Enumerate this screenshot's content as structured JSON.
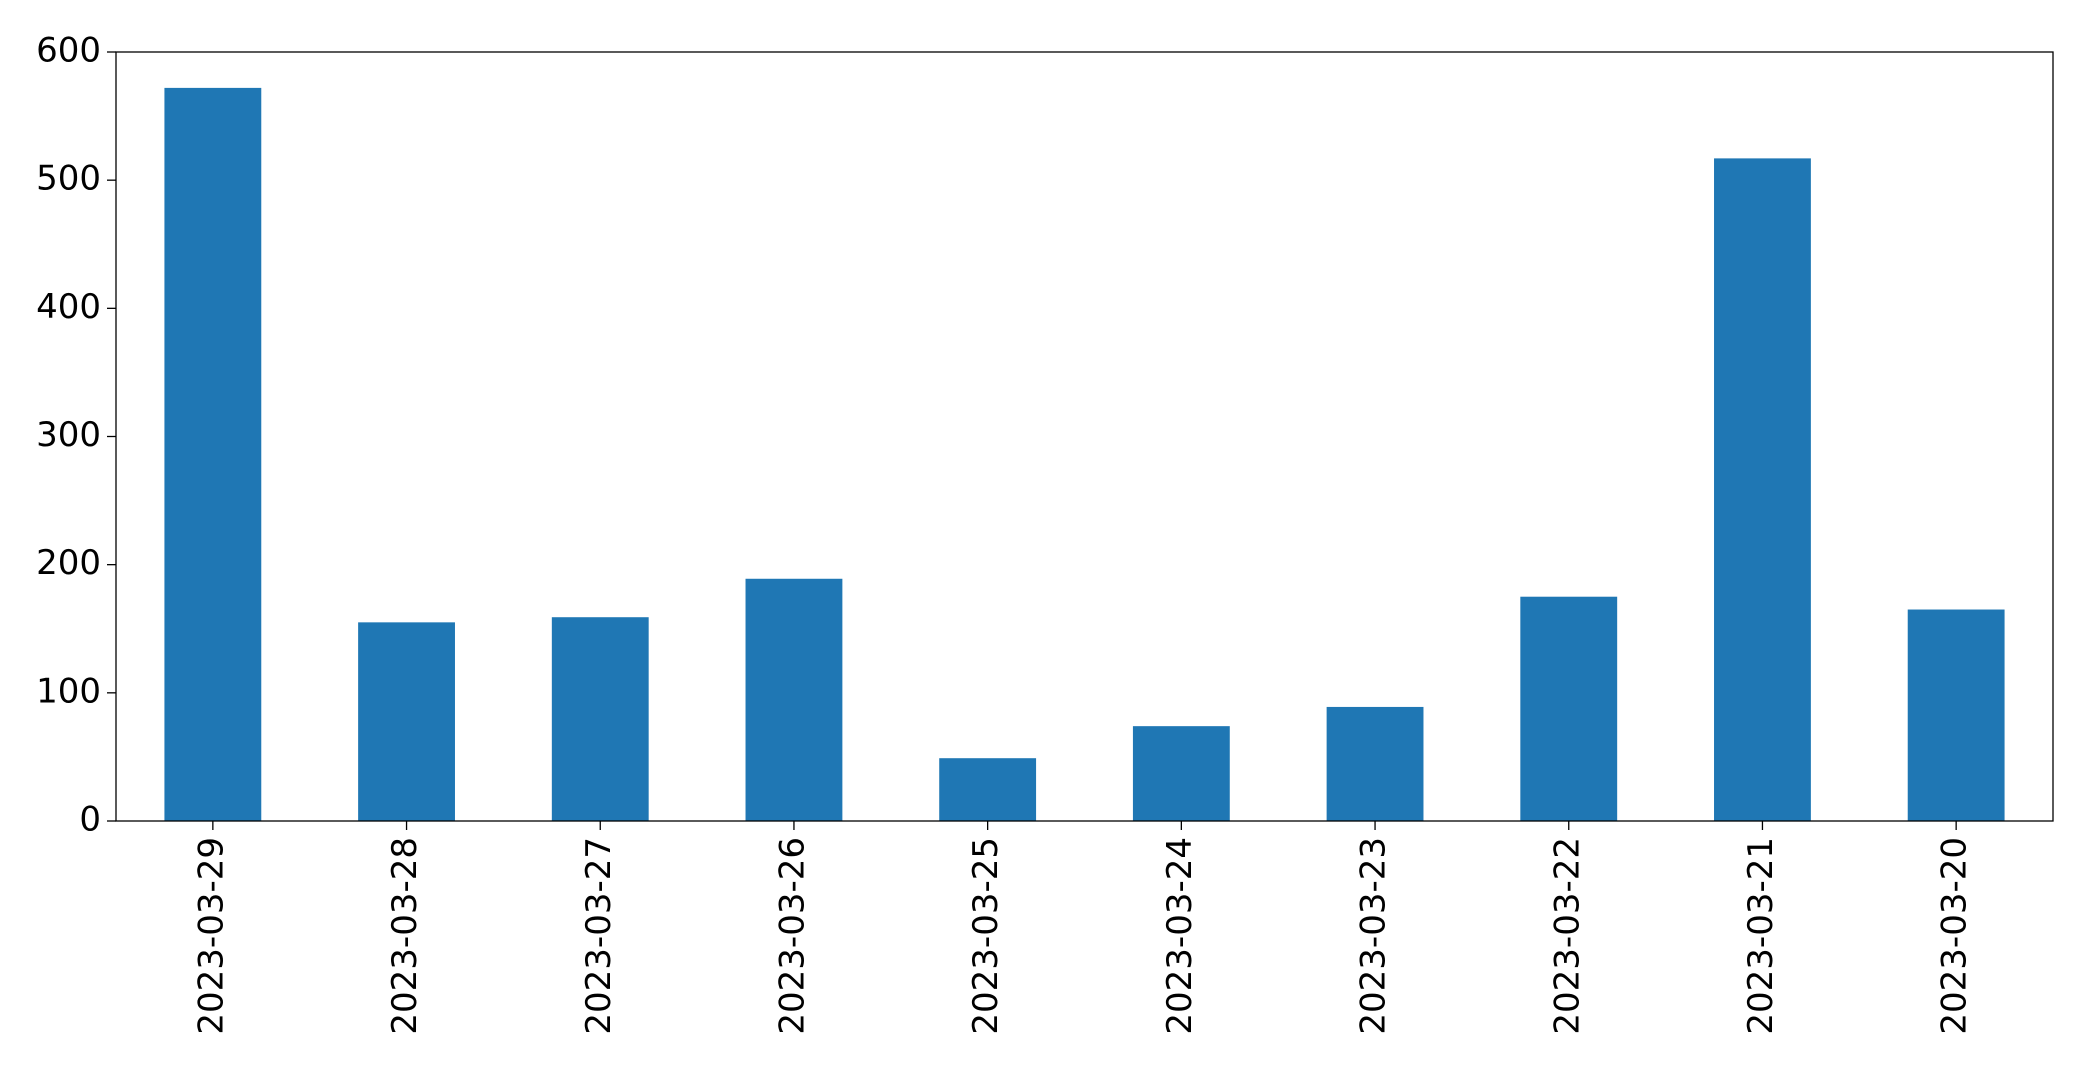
{
  "chart_data": {
    "type": "bar",
    "categories": [
      "2023-03-29",
      "2023-03-28",
      "2023-03-27",
      "2023-03-26",
      "2023-03-25",
      "2023-03-24",
      "2023-03-23",
      "2023-03-22",
      "2023-03-21",
      "2023-03-20"
    ],
    "values": [
      572,
      155,
      159,
      189,
      49,
      74,
      89,
      175,
      517,
      165
    ],
    "color": "#1f77b4",
    "ylim": [
      0,
      600
    ],
    "yticks": [
      0,
      100,
      200,
      300,
      400,
      500,
      600
    ],
    "grid": false
  }
}
